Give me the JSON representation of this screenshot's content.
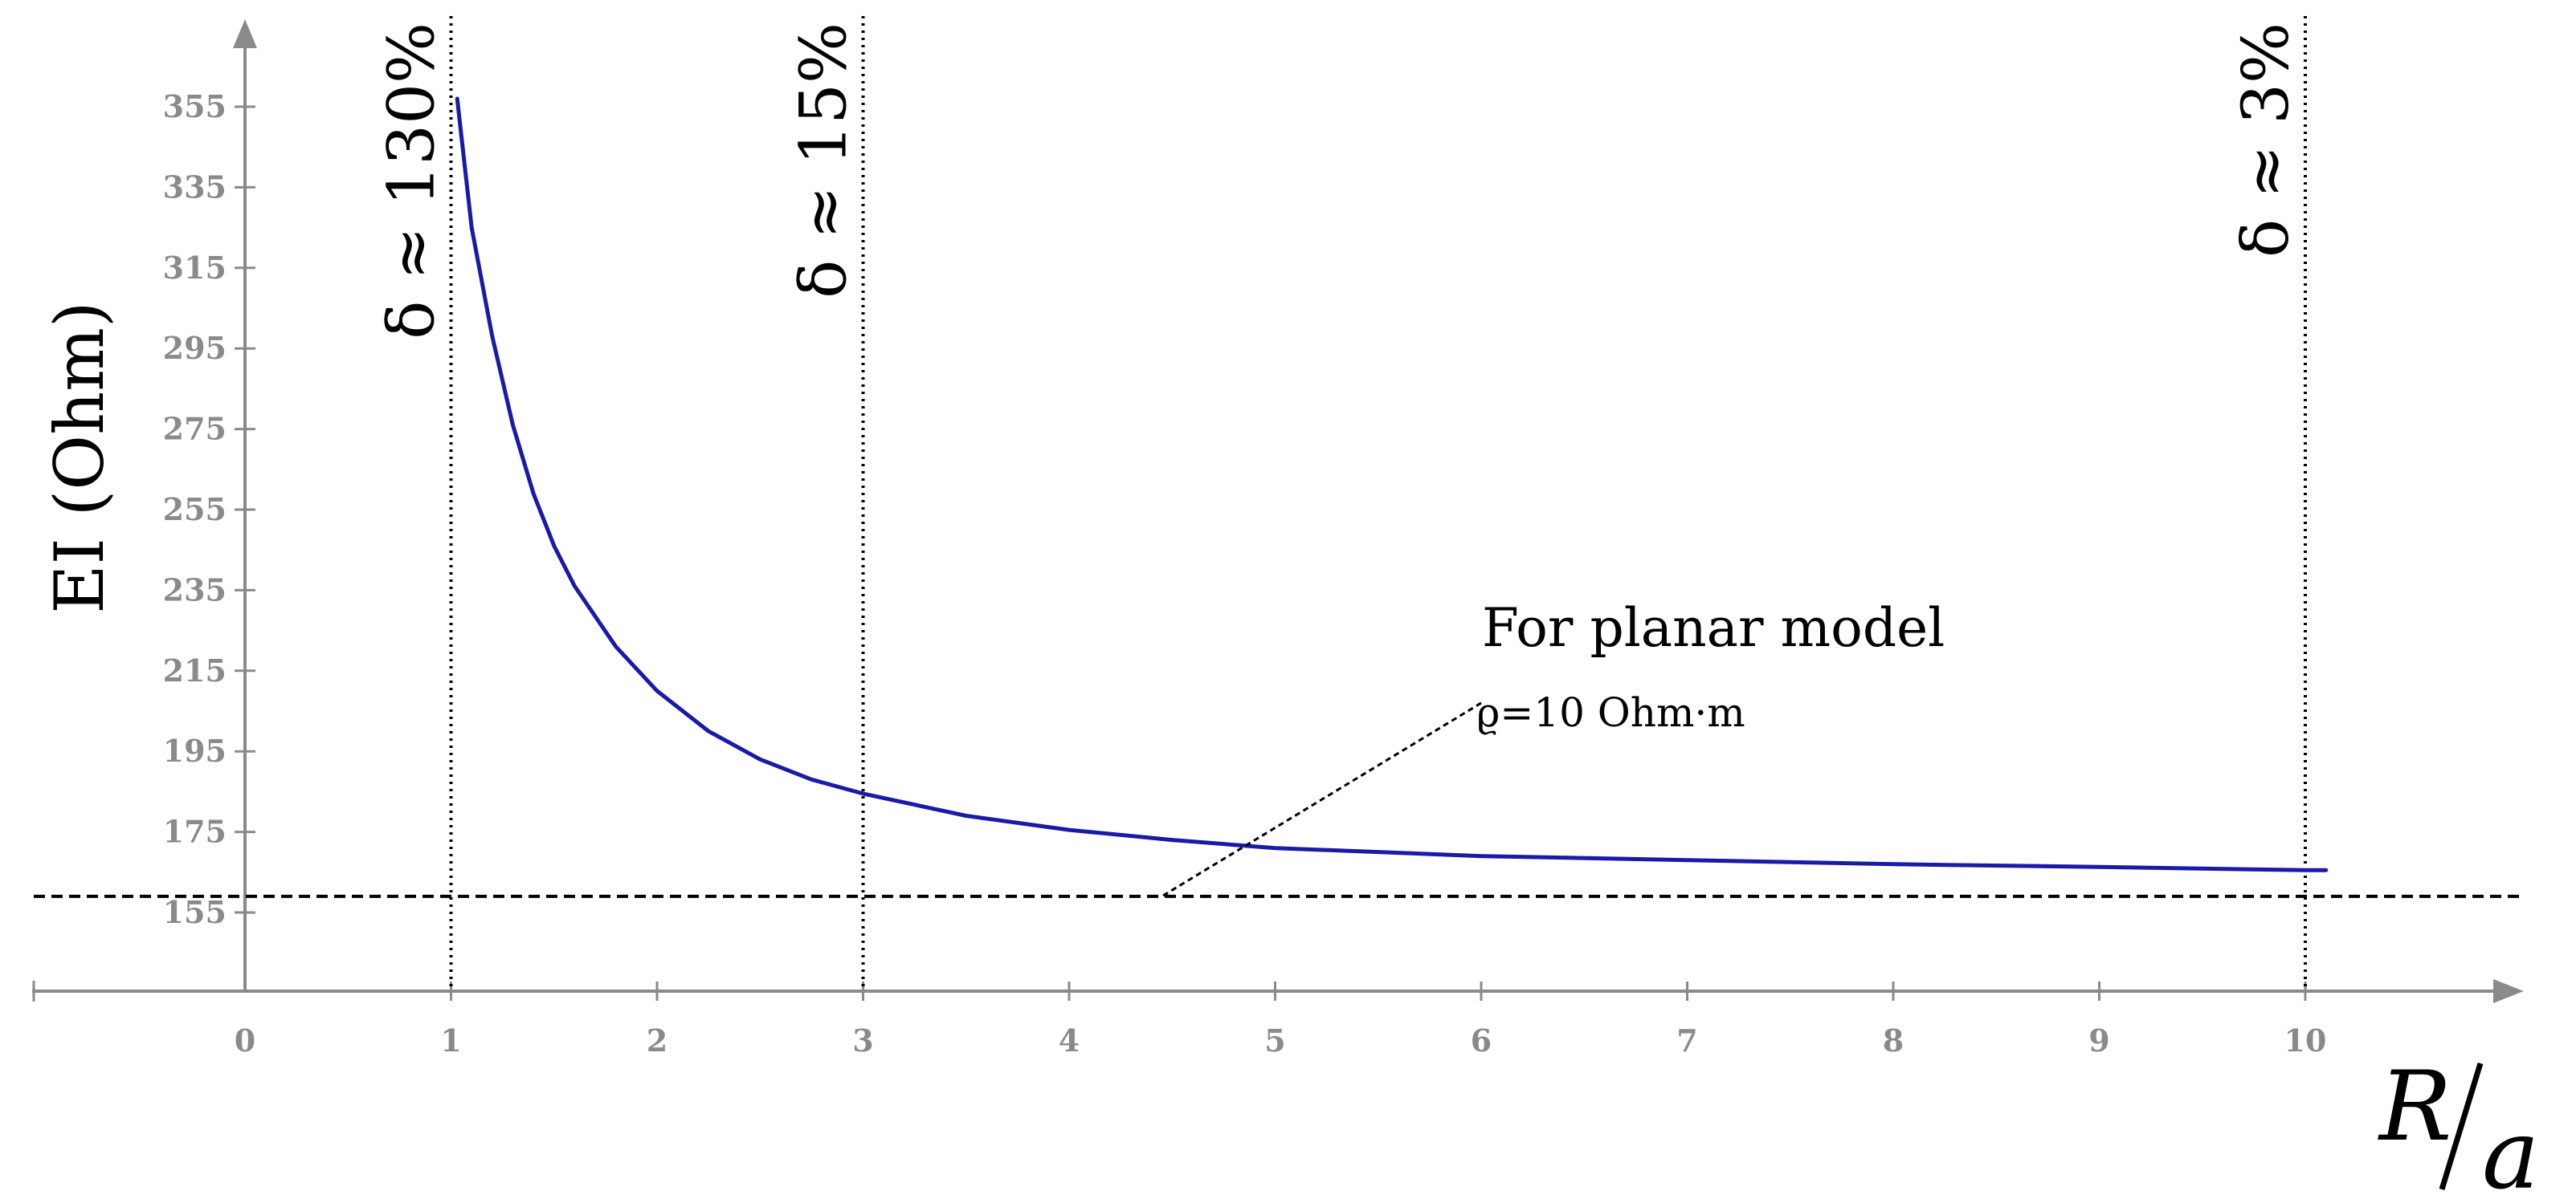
{
  "chart_data": {
    "type": "line",
    "xlabel_num": "R",
    "xlabel_den": "a",
    "ylabel": "EI (Ohm)",
    "xlim": [
      -1,
      11
    ],
    "ylim": [
      135,
      365
    ],
    "x_ticks": [
      0,
      1,
      2,
      3,
      4,
      5,
      6,
      7,
      8,
      9,
      10
    ],
    "y_ticks": [
      155,
      175,
      195,
      215,
      235,
      255,
      275,
      295,
      315,
      335,
      355
    ],
    "series": [
      {
        "color": "#1a1aa8",
        "x": [
          1.03,
          1.1,
          1.2,
          1.3,
          1.4,
          1.5,
          1.6,
          1.8,
          2.0,
          2.25,
          2.5,
          2.75,
          3.0,
          3.5,
          4.0,
          4.5,
          5.0,
          6.0,
          7.0,
          8.0,
          9.0,
          10.0,
          10.1
        ],
        "y": [
          357,
          325,
          298,
          276,
          259,
          246,
          236,
          221,
          210,
          200,
          193,
          188,
          184.5,
          179,
          175.5,
          173,
          171,
          169,
          168,
          167,
          166.3,
          165.5,
          165.5
        ]
      }
    ],
    "reference_line": {
      "y": 159,
      "style": "dashed",
      "color": "#000000"
    },
    "vertical_lines": [
      {
        "x": 1,
        "label": "δ ≈ 130%"
      },
      {
        "x": 3,
        "label": "δ ≈ 15%"
      },
      {
        "x": 10,
        "label": "δ ≈ 3%"
      }
    ],
    "annotation": {
      "line1": "For planar model",
      "line2": "ϱ=10 Ohm·m",
      "pointer_from": [
        6.0,
        207
      ],
      "pointer_to": [
        4.45,
        159
      ]
    },
    "grid": false,
    "legend": "none"
  }
}
